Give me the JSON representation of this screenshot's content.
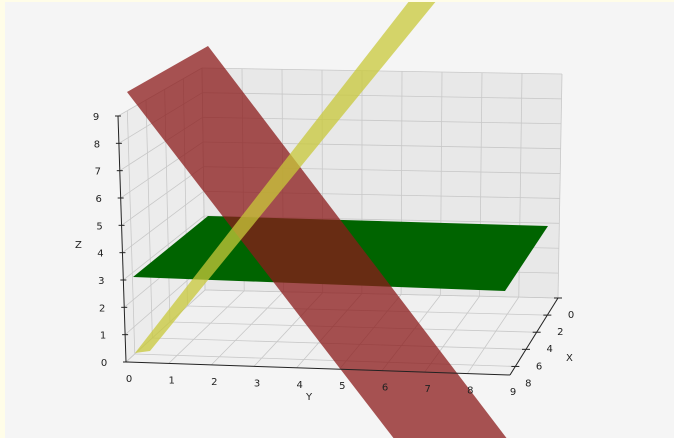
{
  "chart_data": {
    "type": "surface3d",
    "title": "",
    "axes": {
      "x": {
        "label": "X",
        "ticks": [
          "0",
          "2",
          "4",
          "6",
          "8"
        ],
        "range": [
          0,
          9
        ]
      },
      "y": {
        "label": "Y",
        "ticks": [
          "0",
          "1",
          "2",
          "3",
          "4",
          "5",
          "6",
          "7",
          "8",
          "9"
        ],
        "range": [
          0,
          9
        ]
      },
      "z": {
        "label": "Z",
        "ticks": [
          "0",
          "1",
          "2",
          "3",
          "4",
          "5",
          "6",
          "7",
          "8",
          "9"
        ],
        "range": [
          0,
          9
        ]
      }
    },
    "grid": true,
    "surfaces": [
      {
        "color": "#006400",
        "kind": "horizontal plane",
        "z": 3
      },
      {
        "color": "#8b1a1a",
        "kind": "inclined plane",
        "opacity": 0.75
      },
      {
        "color": "#c8c83a",
        "kind": "inclined plane",
        "opacity": 0.75
      }
    ]
  }
}
